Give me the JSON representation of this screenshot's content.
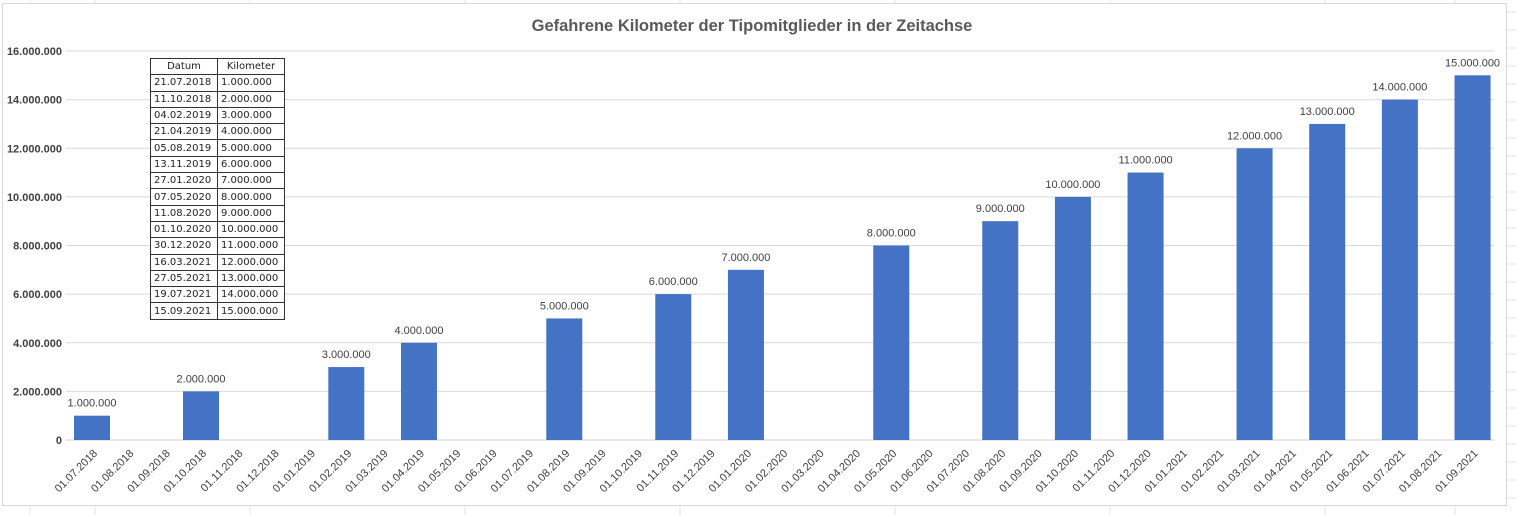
{
  "chart_data": {
    "type": "bar",
    "title": "Gefahrene Kilometer der Tipomitglieder in der Zeitachse",
    "xlabel": "",
    "ylabel": "",
    "ylim": [
      0,
      16000000
    ],
    "yticks": [
      "0",
      "2.000.000",
      "4.000.000",
      "6.000.000",
      "8.000.000",
      "10.000.000",
      "12.000.000",
      "14.000.000",
      "16.000.000"
    ],
    "grid": true,
    "bar_color": "#4472C4",
    "categories": [
      "01.07.2018",
      "01.08.2018",
      "01.09.2018",
      "01.10.2018",
      "01.11.2018",
      "01.12.2018",
      "01.01.2019",
      "01.02.2019",
      "01.03.2019",
      "01.04.2019",
      "01.05.2019",
      "01.06.2019",
      "01.07.2019",
      "01.08.2019",
      "01.09.2019",
      "01.10.2019",
      "01.11.2019",
      "01.12.2019",
      "01.01.2020",
      "01.02.2020",
      "01.03.2020",
      "01.04.2020",
      "01.05.2020",
      "01.06.2020",
      "01.07.2020",
      "01.08.2020",
      "01.09.2020",
      "01.10.2020",
      "01.11.2020",
      "01.12.2020",
      "01.01.2021",
      "01.02.2021",
      "01.03.2021",
      "01.04.2021",
      "01.05.2021",
      "01.06.2021",
      "01.07.2021",
      "01.08.2021",
      "01.09.2021"
    ],
    "values": [
      1000000,
      null,
      null,
      2000000,
      null,
      null,
      null,
      3000000,
      null,
      4000000,
      null,
      null,
      null,
      5000000,
      null,
      null,
      6000000,
      null,
      7000000,
      null,
      null,
      null,
      8000000,
      null,
      null,
      9000000,
      null,
      10000000,
      null,
      11000000,
      null,
      null,
      12000000,
      null,
      13000000,
      null,
      14000000,
      null,
      15000000
    ],
    "data_labels": [
      "1.000.000",
      null,
      null,
      "2.000.000",
      null,
      null,
      null,
      "3.000.000",
      null,
      "4.000.000",
      null,
      null,
      null,
      "5.000.000",
      null,
      null,
      "6.000.000",
      null,
      "7.000.000",
      null,
      null,
      null,
      "8.000.000",
      null,
      null,
      "9.000.000",
      null,
      "10.000.000",
      null,
      "11.000.000",
      null,
      null,
      "12.000.000",
      null,
      "13.000.000",
      null,
      "14.000.000",
      null,
      "15.000.000"
    ]
  },
  "table": {
    "headers": [
      "Datum",
      "Kilometer"
    ],
    "rows": [
      [
        "21.07.2018",
        "1.000.000"
      ],
      [
        "11.10.2018",
        "2.000.000"
      ],
      [
        "04.02.2019",
        "3.000.000"
      ],
      [
        "21.04.2019",
        "4.000.000"
      ],
      [
        "05.08.2019",
        "5.000.000"
      ],
      [
        "13.11.2019",
        "6.000.000"
      ],
      [
        "27.01.2020",
        "7.000.000"
      ],
      [
        "07.05.2020",
        "8.000.000"
      ],
      [
        "11.08.2020",
        "9.000.000"
      ],
      [
        "01.10.2020",
        "10.000.000"
      ],
      [
        "30.12.2020",
        "11.000.000"
      ],
      [
        "16.03.2021",
        "12.000.000"
      ],
      [
        "27.05.2021",
        "13.000.000"
      ],
      [
        "19.07.2021",
        "14.000.000"
      ],
      [
        "15.09.2021",
        "15.000.000"
      ]
    ]
  }
}
